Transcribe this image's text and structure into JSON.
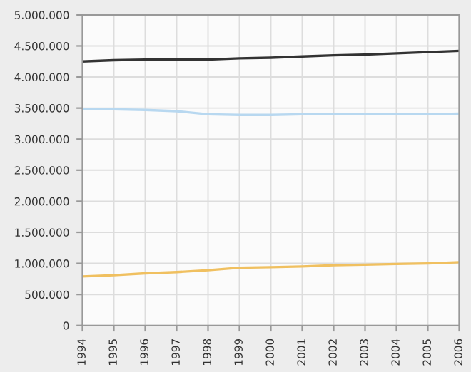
{
  "chart_data": {
    "type": "line",
    "categories": [
      "1994",
      "1995",
      "1996",
      "1997",
      "1998",
      "1999",
      "2000",
      "2001",
      "2002",
      "2003",
      "2004",
      "2005",
      "2006"
    ],
    "series": [
      {
        "color": "#333333",
        "values": [
          4250000,
          4270000,
          4280000,
          4280000,
          4280000,
          4300000,
          4310000,
          4330000,
          4350000,
          4360000,
          4380000,
          4400000,
          4420000
        ]
      },
      {
        "color": "#b8d8f0",
        "values": [
          3480000,
          3480000,
          3470000,
          3450000,
          3400000,
          3390000,
          3390000,
          3400000,
          3400000,
          3400000,
          3400000,
          3400000,
          3410000
        ]
      },
      {
        "color": "#f0c060",
        "values": [
          790000,
          810000,
          840000,
          860000,
          890000,
          930000,
          940000,
          950000,
          970000,
          980000,
          990000,
          1000000,
          1020000
        ]
      }
    ],
    "ylim": [
      0,
      5000000
    ],
    "yticks": [
      0,
      {
        "value": 500000,
        "label": "500.000"
      },
      {
        "value": 1000000,
        "label": "1.000.000"
      },
      {
        "value": 1500000,
        "label": "1.500.000"
      },
      {
        "value": 2000000,
        "label": "2.000.000"
      },
      {
        "value": 2500000,
        "label": "2.500.000"
      },
      {
        "value": 3000000,
        "label": "3.000.000"
      },
      {
        "value": 3500000,
        "label": "3.500.000"
      },
      {
        "value": 4000000,
        "label": "4.000.000"
      },
      {
        "value": 4500000,
        "label": "4.500.000"
      },
      {
        "value": 5000000,
        "label": "5.000.000"
      }
    ],
    "grid": true,
    "marker": "none",
    "line_style": "solid"
  }
}
